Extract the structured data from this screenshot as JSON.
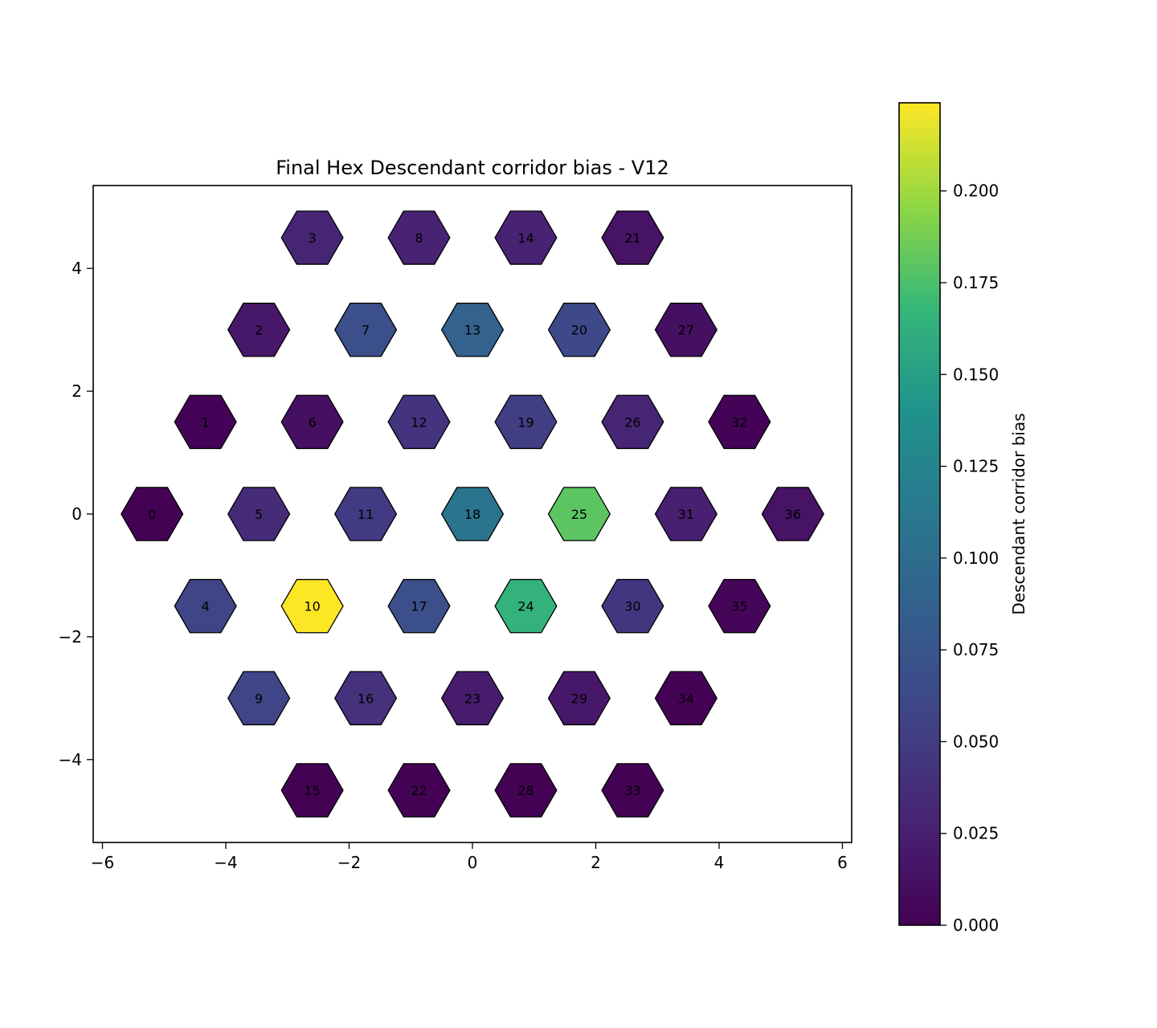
{
  "chart_data": {
    "type": "heatmap",
    "subtype": "hexagonal cell map",
    "title": "Final Hex Descendant corridor bias - V12",
    "xlabel": "",
    "ylabel": "",
    "xlim": [
      -6.15,
      6.15
    ],
    "ylim": [
      -5.35,
      5.35
    ],
    "x_ticks": [
      -6,
      -4,
      -2,
      0,
      2,
      4,
      6
    ],
    "y_ticks": [
      -4,
      -2,
      0,
      2,
      4
    ],
    "x_tick_labels": [
      "−6",
      "−4",
      "−2",
      "0",
      "2",
      "4",
      "6"
    ],
    "y_tick_labels": [
      "−4",
      "−2",
      "0",
      "2",
      "4"
    ],
    "grid": false,
    "colormap": "viridis",
    "colorbar": {
      "label": "Descendant corridor bias",
      "range": [
        0,
        0.224
      ],
      "ticks": [
        0,
        0.025,
        0.05,
        0.075,
        0.1,
        0.125,
        0.15,
        0.175,
        0.2
      ],
      "tick_labels": [
        "0.000",
        "0.025",
        "0.050",
        "0.075",
        "0.100",
        "0.125",
        "0.150",
        "0.175",
        "0.200"
      ]
    },
    "cells": [
      {
        "id": "0",
        "x": -5.196,
        "y": 0.0,
        "value": 0.001
      },
      {
        "id": "1",
        "x": -4.33,
        "y": 1.5,
        "value": 0.002
      },
      {
        "id": "2",
        "x": -3.464,
        "y": 3.0,
        "value": 0.018
      },
      {
        "id": "3",
        "x": -2.598,
        "y": 4.5,
        "value": 0.03
      },
      {
        "id": "4",
        "x": -4.33,
        "y": -1.5,
        "value": 0.058
      },
      {
        "id": "5",
        "x": -3.464,
        "y": 0.0,
        "value": 0.035
      },
      {
        "id": "6",
        "x": -2.598,
        "y": 1.5,
        "value": 0.012
      },
      {
        "id": "7",
        "x": -1.732,
        "y": 3.0,
        "value": 0.068
      },
      {
        "id": "8",
        "x": -0.866,
        "y": 4.5,
        "value": 0.028
      },
      {
        "id": "9",
        "x": -3.464,
        "y": -3.0,
        "value": 0.058
      },
      {
        "id": "10",
        "x": -2.598,
        "y": -1.5,
        "value": 0.224
      },
      {
        "id": "11",
        "x": -1.732,
        "y": 0.0,
        "value": 0.048
      },
      {
        "id": "12",
        "x": -0.866,
        "y": 1.5,
        "value": 0.042
      },
      {
        "id": "13",
        "x": 0.0,
        "y": 3.0,
        "value": 0.088
      },
      {
        "id": "14",
        "x": 0.866,
        "y": 4.5,
        "value": 0.027
      },
      {
        "id": "15",
        "x": -2.598,
        "y": -4.5,
        "value": 0.001
      },
      {
        "id": "16",
        "x": -1.732,
        "y": -3.0,
        "value": 0.04
      },
      {
        "id": "17",
        "x": -0.866,
        "y": -1.5,
        "value": 0.068
      },
      {
        "id": "18",
        "x": 0.0,
        "y": 0.0,
        "value": 0.108
      },
      {
        "id": "19",
        "x": 0.866,
        "y": 1.5,
        "value": 0.052
      },
      {
        "id": "20",
        "x": 1.732,
        "y": 3.0,
        "value": 0.062
      },
      {
        "id": "21",
        "x": 2.598,
        "y": 4.5,
        "value": 0.015
      },
      {
        "id": "22",
        "x": -0.866,
        "y": -4.5,
        "value": 0.001
      },
      {
        "id": "23",
        "x": 0.0,
        "y": -3.0,
        "value": 0.022
      },
      {
        "id": "24",
        "x": 0.866,
        "y": -1.5,
        "value": 0.165
      },
      {
        "id": "25",
        "x": 1.732,
        "y": 0.0,
        "value": 0.18
      },
      {
        "id": "26",
        "x": 2.598,
        "y": 1.5,
        "value": 0.03
      },
      {
        "id": "27",
        "x": 3.464,
        "y": 3.0,
        "value": 0.012
      },
      {
        "id": "28",
        "x": 0.866,
        "y": -4.5,
        "value": 0.001
      },
      {
        "id": "29",
        "x": 1.732,
        "y": -3.0,
        "value": 0.018
      },
      {
        "id": "30",
        "x": 2.598,
        "y": -1.5,
        "value": 0.045
      },
      {
        "id": "31",
        "x": 3.464,
        "y": 0.0,
        "value": 0.025
      },
      {
        "id": "32",
        "x": 4.33,
        "y": 1.5,
        "value": 0.002
      },
      {
        "id": "33",
        "x": 2.598,
        "y": -4.5,
        "value": 0.001
      },
      {
        "id": "34",
        "x": 3.464,
        "y": -3.0,
        "value": 0.001
      },
      {
        "id": "35",
        "x": 4.33,
        "y": -1.5,
        "value": 0.004
      },
      {
        "id": "36",
        "x": 5.196,
        "y": 0.0,
        "value": 0.015
      }
    ]
  }
}
